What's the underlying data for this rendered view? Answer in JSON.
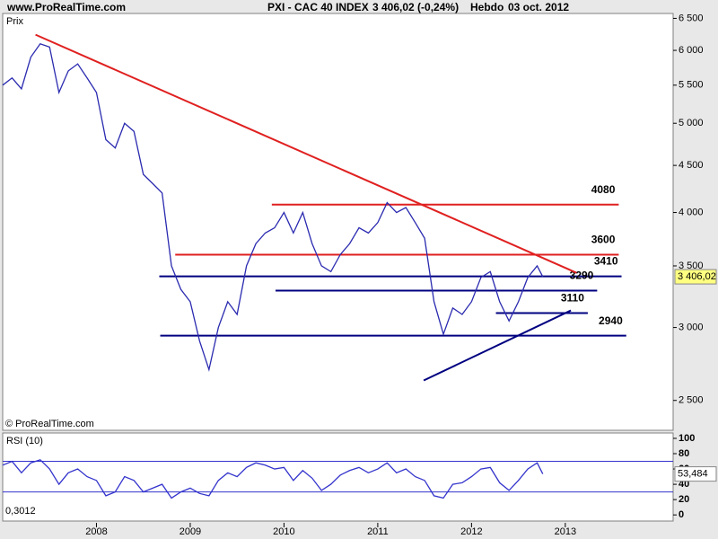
{
  "header": {
    "site": "www.ProRealTime.com",
    "symbol": "PXI - CAC 40 INDEX",
    "quote": "3 406,02 (-0,24%)",
    "period": "Hebdo",
    "date": "03 oct. 2012"
  },
  "chart_data": [
    {
      "type": "line",
      "title": "Prix",
      "credit": "© ProRealTime.com",
      "log_scale": true,
      "x": [
        2007.0,
        2007.1,
        2007.2,
        2007.3,
        2007.4,
        2007.5,
        2007.6,
        2007.7,
        2007.8,
        2007.9,
        2008.0,
        2008.1,
        2008.2,
        2008.3,
        2008.4,
        2008.5,
        2008.6,
        2008.7,
        2008.8,
        2008.9,
        2009.0,
        2009.1,
        2009.2,
        2009.3,
        2009.4,
        2009.5,
        2009.6,
        2009.7,
        2009.8,
        2009.9,
        2010.0,
        2010.1,
        2010.2,
        2010.3,
        2010.4,
        2010.5,
        2010.6,
        2010.7,
        2010.8,
        2010.9,
        2011.0,
        2011.1,
        2011.2,
        2011.3,
        2011.4,
        2011.5,
        2011.6,
        2011.7,
        2011.8,
        2011.9,
        2012.0,
        2012.1,
        2012.2,
        2012.3,
        2012.4,
        2012.5,
        2012.6,
        2012.7,
        2012.76
      ],
      "series": [
        {
          "color": "#2a2ab0",
          "values": [
            5500,
            5600,
            5450,
            5900,
            6100,
            6050,
            5400,
            5700,
            5800,
            5600,
            5400,
            4800,
            4700,
            5000,
            4900,
            4400,
            4300,
            4200,
            3500,
            3300,
            3200,
            2900,
            2700,
            3000,
            3200,
            3100,
            3500,
            3700,
            3800,
            3850,
            4000,
            3800,
            4000,
            3700,
            3500,
            3450,
            3600,
            3700,
            3850,
            3800,
            3900,
            4100,
            4000,
            4050,
            3900,
            3750,
            3200,
            2950,
            3150,
            3100,
            3200,
            3400,
            3450,
            3200,
            3050,
            3200,
            3400,
            3500,
            3406.02
          ]
        }
      ],
      "last_label": {
        "value": 3406.02,
        "label": "3 406,02"
      },
      "levels": [
        {
          "value": 4080,
          "x": [
            2009.87,
            2013.57
          ],
          "color": "#e02020"
        },
        {
          "value": 3600,
          "x": [
            2008.84,
            2013.57
          ],
          "color": "#e02020"
        },
        {
          "value": 3410,
          "x": [
            2008.67,
            2013.6
          ],
          "color": "#000080"
        },
        {
          "value": 3290,
          "x": [
            2009.91,
            2013.34
          ],
          "color": "#000080"
        },
        {
          "value": 3110,
          "x": [
            2012.26,
            2013.24
          ],
          "color": "#000080"
        },
        {
          "value": 2940,
          "x": [
            2008.68,
            2013.65
          ],
          "color": "#000080"
        }
      ],
      "trendlines": [
        {
          "x": [
            2007.35,
            2013.12
          ],
          "y": [
            6240,
            3440
          ],
          "color": "#e02020"
        },
        {
          "x": [
            2011.49,
            2013.06
          ],
          "y": [
            2628,
            3131
          ],
          "color": "#000080"
        }
      ],
      "xlim": [
        2007.0,
        2014.15
      ],
      "xticks": [
        2008,
        2009,
        2010,
        2011,
        2012,
        2013
      ],
      "ylim": [
        2320,
        6580
      ],
      "yticks": [
        {
          "value": 2500,
          "label": "2 500"
        },
        {
          "value": 3000,
          "label": "3 000"
        },
        {
          "value": 3500,
          "label": "3 500"
        },
        {
          "value": 4000,
          "label": "4 000"
        },
        {
          "value": 4500,
          "label": "4 500"
        },
        {
          "value": 5000,
          "label": "5 000"
        },
        {
          "value": 5500,
          "label": "5 500"
        },
        {
          "value": 6000,
          "label": "6 000"
        },
        {
          "value": 6500,
          "label": "6 500"
        }
      ]
    },
    {
      "type": "line",
      "title": "RSI (10)",
      "note": "0,3012",
      "x": [
        2007.0,
        2007.1,
        2007.2,
        2007.3,
        2007.4,
        2007.5,
        2007.6,
        2007.7,
        2007.8,
        2007.9,
        2008.0,
        2008.1,
        2008.2,
        2008.3,
        2008.4,
        2008.5,
        2008.6,
        2008.7,
        2008.8,
        2008.9,
        2009.0,
        2009.1,
        2009.2,
        2009.3,
        2009.4,
        2009.5,
        2009.6,
        2009.7,
        2009.8,
        2009.9,
        2010.0,
        2010.1,
        2010.2,
        2010.3,
        2010.4,
        2010.5,
        2010.6,
        2010.7,
        2010.8,
        2010.9,
        2011.0,
        2011.1,
        2011.2,
        2011.3,
        2011.4,
        2011.5,
        2011.6,
        2011.7,
        2011.8,
        2011.9,
        2012.0,
        2012.1,
        2012.2,
        2012.3,
        2012.4,
        2012.5,
        2012.6,
        2012.7,
        2012.76
      ],
      "series": [
        {
          "color": "#3333cc",
          "values": [
            65,
            70,
            55,
            68,
            72,
            60,
            40,
            55,
            60,
            50,
            45,
            25,
            30,
            50,
            45,
            30,
            35,
            40,
            22,
            30,
            35,
            28,
            25,
            45,
            55,
            50,
            62,
            68,
            65,
            60,
            62,
            45,
            58,
            48,
            32,
            40,
            52,
            58,
            62,
            55,
            60,
            68,
            55,
            60,
            50,
            45,
            25,
            22,
            40,
            42,
            50,
            60,
            62,
            42,
            32,
            45,
            60,
            68,
            53.484
          ]
        }
      ],
      "last_label": {
        "value": 53.484,
        "label": "53,484"
      },
      "levels": [
        {
          "value": 70,
          "color": "#3333cc"
        },
        {
          "value": 30,
          "color": "#3333cc"
        }
      ],
      "xlim": [
        2007.0,
        2014.15
      ],
      "ylim": [
        -8,
        107
      ],
      "yticks": [
        0,
        20,
        40,
        60,
        80,
        100
      ]
    }
  ]
}
